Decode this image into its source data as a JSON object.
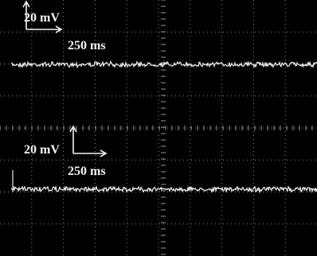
{
  "scale_bars": [
    {
      "voltage": "20 mV",
      "time": "250 ms"
    },
    {
      "voltage": "20 mV",
      "time": "250 ms"
    }
  ]
}
